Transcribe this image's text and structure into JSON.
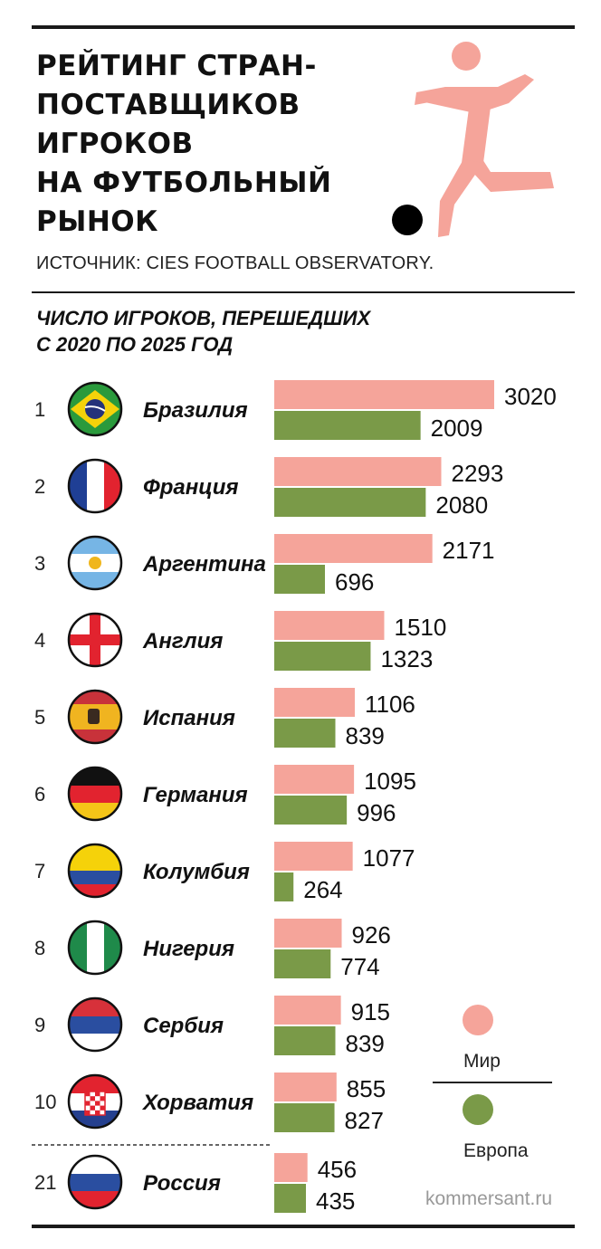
{
  "header": {
    "title_lines": [
      "РЕЙТИНГ СТРАН-",
      "ПОСТАВЩИКОВ",
      "ИГРОКОВ",
      "НА ФУТБОЛЬНЫЙ",
      "РЫНОК"
    ],
    "source": "ИСТОЧНИК: CIES FOOTBALL OBSERVATORY."
  },
  "subtitle_lines": [
    "ЧИСЛО ИГРОКОВ, ПЕРЕШЕДШИХ",
    "С 2020 ПО 2025 ГОД"
  ],
  "legend": {
    "world": "Мир",
    "europe": "Европа"
  },
  "credit": "kommersant.ru",
  "colors": {
    "world": "#f5a49a",
    "europe": "#7a9a48",
    "text": "#1a1a1a"
  },
  "chart_data": {
    "type": "bar",
    "orientation": "horizontal",
    "categories": [
      "Бразилия",
      "Франция",
      "Аргентина",
      "Англия",
      "Испания",
      "Германия",
      "Колумбия",
      "Нигерия",
      "Сербия",
      "Хорватия",
      "Россия"
    ],
    "ranks": [
      "1",
      "2",
      "3",
      "4",
      "5",
      "6",
      "7",
      "8",
      "9",
      "10",
      "21"
    ],
    "flags": [
      "brazil-flag-icon",
      "france-flag-icon",
      "argentina-flag-icon",
      "england-flag-icon",
      "spain-flag-icon",
      "germany-flag-icon",
      "colombia-flag-icon",
      "nigeria-flag-icon",
      "serbia-flag-icon",
      "croatia-flag-icon",
      "russia-flag-icon"
    ],
    "series": [
      {
        "name": "Мир",
        "values": [
          3020,
          2293,
          2171,
          1510,
          1106,
          1095,
          1077,
          926,
          915,
          855,
          456
        ]
      },
      {
        "name": "Европа",
        "values": [
          2009,
          2080,
          696,
          1323,
          839,
          996,
          264,
          774,
          839,
          827,
          435
        ]
      }
    ],
    "legend_position": "bottom-right",
    "grid": false
  }
}
